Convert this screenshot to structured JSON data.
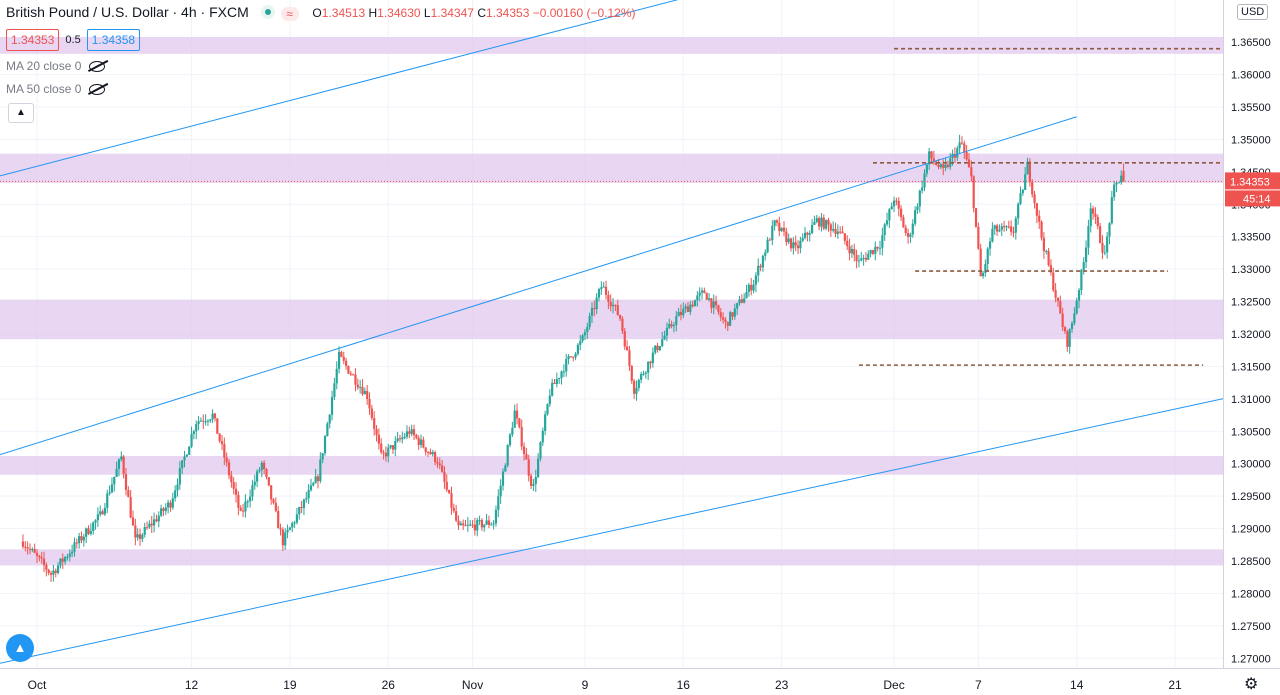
{
  "header": {
    "title": "British Pound / U.S. Dollar · 4h · FXCM",
    "ohlc": [
      {
        "key": "O",
        "value": "1.34513"
      },
      {
        "key": "H",
        "value": "1.34630"
      },
      {
        "key": "L",
        "value": "1.34347"
      },
      {
        "key": "C",
        "value": "1.34353"
      }
    ],
    "change": "−0.00160 (−0.12%)",
    "sell_price": "1.34353",
    "spread": "0.5",
    "buy_price": "1.34358",
    "indicators": [
      "MA 20 close 0",
      "MA 50 close 0"
    ],
    "currency": "USD",
    "wave_icon": "≈"
  },
  "colors": {
    "up": "#26a69a",
    "down": "#ef5350",
    "zone": "#e1c8ee",
    "trendline": "#2196f3",
    "level": "#8d5a3e",
    "price_tag": "#ef5350"
  },
  "chart_data": {
    "type": "candlestick",
    "symbol": "GBPUSD",
    "timeframe": "4h",
    "ylim": [
      1.2685,
      1.3715
    ],
    "price_axis_ticks": [
      "1.36500",
      "1.36000",
      "1.35500",
      "1.35000",
      "1.34500",
      "1.34000",
      "1.33500",
      "1.33000",
      "1.32500",
      "1.32000",
      "1.31500",
      "1.31000",
      "1.30500",
      "1.30000",
      "1.29500",
      "1.29000",
      "1.28500",
      "1.28000",
      "1.27500",
      "1.27000"
    ],
    "x_ticks": [
      {
        "label": "Oct",
        "day": 1
      },
      {
        "label": "12",
        "day": 12
      },
      {
        "label": "19",
        "day": 19
      },
      {
        "label": "26",
        "day": 26
      },
      {
        "label": "Nov",
        "day": 32
      },
      {
        "label": "9",
        "day": 40
      },
      {
        "label": "16",
        "day": 47
      },
      {
        "label": "23",
        "day": 54
      },
      {
        "label": "Dec",
        "day": 62
      },
      {
        "label": "7",
        "day": 68
      },
      {
        "label": "14",
        "day": 75
      },
      {
        "label": "21",
        "day": 82
      }
    ],
    "last_price": "1.34353",
    "countdown": "45:14",
    "zones": [
      {
        "low": 1.3632,
        "high": 1.3658
      },
      {
        "low": 1.3433,
        "high": 1.3478
      },
      {
        "low": 1.3192,
        "high": 1.3253
      },
      {
        "low": 1.2983,
        "high": 1.3012
      },
      {
        "low": 1.2843,
        "high": 1.2868
      }
    ],
    "levels": [
      {
        "price": 1.364,
        "from_day": 62.0,
        "to_day": 86.5
      },
      {
        "price": 1.3464,
        "from_day": 60.5,
        "to_day": 86.0
      },
      {
        "price": 1.3297,
        "from_day": 63.5,
        "to_day": 81.5
      },
      {
        "price": 1.3152,
        "from_day": 59.5,
        "to_day": 84.0
      }
    ],
    "trendlines": [
      {
        "day1": 0.0,
        "price1": 1.3453,
        "day2": 54.5,
        "price2": 1.376
      },
      {
        "day1": 0.0,
        "price1": 1.3025,
        "day2": 75.0,
        "price2": 1.3535
      },
      {
        "day1": 0.0,
        "price1": 1.27,
        "day2": 87.5,
        "price2": 1.311
      }
    ],
    "anchors": [
      {
        "day": 0.0,
        "price": 1.288
      },
      {
        "day": 2.0,
        "price": 1.283
      },
      {
        "day": 5.5,
        "price": 1.292
      },
      {
        "day": 7.0,
        "price": 1.301
      },
      {
        "day": 8.0,
        "price": 1.288
      },
      {
        "day": 10.5,
        "price": 1.294
      },
      {
        "day": 12.3,
        "price": 1.3065
      },
      {
        "day": 13.5,
        "price": 1.3075
      },
      {
        "day": 15.5,
        "price": 1.292
      },
      {
        "day": 17.0,
        "price": 1.3
      },
      {
        "day": 18.5,
        "price": 1.288
      },
      {
        "day": 21.0,
        "price": 1.298
      },
      {
        "day": 22.5,
        "price": 1.3165
      },
      {
        "day": 24.5,
        "price": 1.3105
      },
      {
        "day": 25.5,
        "price": 1.301
      },
      {
        "day": 27.5,
        "price": 1.305
      },
      {
        "day": 29.5,
        "price": 1.3005
      },
      {
        "day": 31.0,
        "price": 1.29
      },
      {
        "day": 33.5,
        "price": 1.291
      },
      {
        "day": 35.0,
        "price": 1.308
      },
      {
        "day": 36.3,
        "price": 1.296
      },
      {
        "day": 37.5,
        "price": 1.311
      },
      {
        "day": 38.5,
        "price": 1.315
      },
      {
        "day": 39.8,
        "price": 1.319
      },
      {
        "day": 41.2,
        "price": 1.3275
      },
      {
        "day": 42.5,
        "price": 1.3225
      },
      {
        "day": 43.5,
        "price": 1.3115
      },
      {
        "day": 45.0,
        "price": 1.3175
      },
      {
        "day": 46.5,
        "price": 1.3225
      },
      {
        "day": 48.5,
        "price": 1.3265
      },
      {
        "day": 50.0,
        "price": 1.3215
      },
      {
        "day": 52.0,
        "price": 1.328
      },
      {
        "day": 53.5,
        "price": 1.337
      },
      {
        "day": 55.0,
        "price": 1.333
      },
      {
        "day": 56.5,
        "price": 1.3375
      },
      {
        "day": 58.0,
        "price": 1.336
      },
      {
        "day": 59.5,
        "price": 1.331
      },
      {
        "day": 61.0,
        "price": 1.334
      },
      {
        "day": 62.0,
        "price": 1.341
      },
      {
        "day": 63.0,
        "price": 1.3345
      },
      {
        "day": 64.5,
        "price": 1.3475
      },
      {
        "day": 65.5,
        "price": 1.345
      },
      {
        "day": 66.8,
        "price": 1.3495
      },
      {
        "day": 67.5,
        "price": 1.344
      },
      {
        "day": 68.2,
        "price": 1.328
      },
      {
        "day": 69.0,
        "price": 1.336
      },
      {
        "day": 70.5,
        "price": 1.336
      },
      {
        "day": 71.5,
        "price": 1.346
      },
      {
        "day": 72.5,
        "price": 1.335
      },
      {
        "day": 73.5,
        "price": 1.326
      },
      {
        "day": 74.3,
        "price": 1.3185
      },
      {
        "day": 74.7,
        "price": 1.322
      },
      {
        "day": 75.5,
        "price": 1.331
      },
      {
        "day": 76.0,
        "price": 1.34
      },
      {
        "day": 77.0,
        "price": 1.332
      },
      {
        "day": 77.6,
        "price": 1.342
      },
      {
        "day": 78.3,
        "price": 1.3452
      },
      {
        "day": 78.4,
        "price": 1.3435
      }
    ]
  }
}
